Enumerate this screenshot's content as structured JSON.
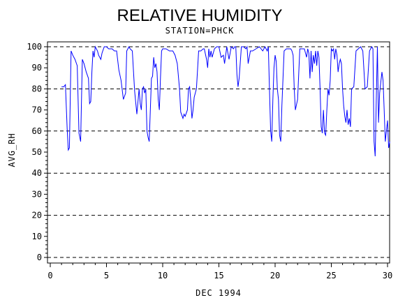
{
  "chart_data": {
    "type": "line",
    "title": "RELATIVE HUMIDITY",
    "subtitle": "STATION=PHCK",
    "xlabel": "DEC 1994",
    "ylabel": "AVG_RH",
    "xlim": [
      0,
      30
    ],
    "ylim": [
      0,
      100
    ],
    "x_ticks": [
      "0",
      "5",
      "10",
      "15",
      "20",
      "25",
      "30"
    ],
    "y_ticks": [
      "0",
      "10",
      "20",
      "30",
      "40",
      "50",
      "60",
      "70",
      "80",
      "90",
      "100"
    ],
    "gridlines_y": [
      0,
      20,
      40,
      60,
      80,
      100
    ],
    "grid": "dashed horizontal",
    "line_color": "#0000ff",
    "series": [
      {
        "x": [
          1.0,
          1.2,
          1.35,
          1.5,
          1.6,
          1.7,
          1.85,
          2.0,
          2.2,
          2.4,
          2.55,
          2.7,
          2.85,
          3.0,
          3.2,
          3.4,
          3.5,
          3.6,
          3.7,
          3.8,
          3.9,
          4.0,
          4.1,
          4.2,
          4.3,
          4.5,
          4.6,
          4.8,
          5.0,
          5.2,
          5.5,
          5.7,
          5.9,
          6.1,
          6.3,
          6.5,
          6.7,
          6.8,
          6.9,
          7.0,
          7.1,
          7.3,
          7.5,
          7.7,
          7.9,
          8.0,
          8.1,
          8.2,
          8.3,
          8.4,
          8.5,
          8.6,
          8.7,
          8.8,
          8.9,
          9.0,
          9.1,
          9.2,
          9.3,
          9.4,
          9.5,
          9.6,
          9.7,
          9.8,
          9.9,
          10.0,
          10.3,
          10.6,
          10.9,
          11.1,
          11.3,
          11.5,
          11.6,
          11.8,
          11.9,
          12.0,
          12.2,
          12.3,
          12.4,
          12.5,
          12.6,
          12.7,
          12.8,
          12.9,
          13.0,
          13.2,
          13.4,
          13.6,
          13.7,
          13.9,
          14.0,
          14.1,
          14.2,
          14.3,
          14.4,
          14.6,
          14.8,
          15.0,
          15.2,
          15.4,
          15.5,
          15.7,
          15.9,
          16.1,
          16.3,
          16.4,
          16.5,
          16.6,
          16.7,
          16.8,
          17.0,
          17.2,
          17.4,
          17.5,
          17.6,
          17.8,
          18.0,
          18.3,
          18.6,
          18.9,
          19.1,
          19.2,
          19.3,
          19.4,
          19.5,
          19.6,
          19.7,
          19.8,
          19.9,
          20.0,
          20.1,
          20.2,
          20.3,
          20.4,
          20.5,
          20.6,
          20.8,
          21.0,
          21.2,
          21.4,
          21.5,
          21.6,
          21.7,
          21.8,
          22.0,
          22.2,
          22.4,
          22.6,
          22.8,
          22.9,
          23.0,
          23.1,
          23.2,
          23.3,
          23.4,
          23.5,
          23.6,
          23.7,
          23.8,
          23.9,
          24.0,
          24.1,
          24.2,
          24.3,
          24.4,
          24.5,
          24.6,
          24.7,
          24.8,
          24.9,
          25.0,
          25.1,
          25.2,
          25.3,
          25.4,
          25.5,
          25.6,
          25.7,
          25.8,
          25.9,
          26.0,
          26.1,
          26.2,
          26.3,
          26.4,
          26.5,
          26.6,
          26.7,
          26.8,
          27.0,
          27.2,
          27.4,
          27.6,
          27.8,
          28.0,
          28.2,
          28.4,
          28.5,
          28.6,
          28.7,
          28.8,
          28.9,
          29.0,
          29.1,
          29.2,
          29.3,
          29.4,
          29.5,
          29.6,
          29.7,
          29.8,
          29.9,
          30.0,
          30.1,
          30.2
        ],
        "values": [
          81,
          81,
          82,
          61,
          51,
          52,
          98,
          96,
          94,
          91,
          59,
          55,
          94,
          92,
          88,
          85,
          73,
          74,
          88,
          98,
          95,
          100,
          99,
          98,
          96,
          94,
          97,
          100,
          100,
          99,
          99,
          98,
          98,
          89,
          84,
          75,
          78,
          98,
          99,
          100,
          99,
          98,
          79,
          68,
          80,
          73,
          70,
          80,
          81,
          78,
          80,
          60,
          57,
          55,
          70,
          85,
          86,
          95,
          90,
          92,
          88,
          75,
          70,
          85,
          98,
          99,
          99,
          98,
          98,
          96,
          92,
          80,
          69,
          66,
          68,
          67,
          70,
          80,
          81,
          74,
          66,
          70,
          76,
          78,
          80,
          98,
          98,
          99,
          99,
          94,
          90,
          99,
          95,
          98,
          95,
          99,
          100,
          100,
          95,
          96,
          92,
          100,
          94,
          100,
          99,
          100,
          100,
          87,
          81,
          85,
          100,
          100,
          99,
          100,
          92,
          98,
          98,
          99,
          100,
          98,
          100,
          99,
          98,
          100,
          80,
          60,
          55,
          75,
          90,
          96,
          93,
          80,
          75,
          58,
          55,
          72,
          98,
          99,
          99,
          99,
          98,
          96,
          80,
          70,
          75,
          99,
          99,
          99,
          95,
          99,
          97,
          85,
          98,
          88,
          96,
          92,
          98,
          91,
          98,
          95,
          80,
          62,
          59,
          70,
          59,
          58,
          70,
          80,
          77,
          84,
          99,
          98,
          99,
          94,
          99,
          96,
          88,
          92,
          94,
          92,
          80,
          72,
          67,
          64,
          70,
          63,
          66,
          62,
          80,
          81,
          98,
          99,
          100,
          98,
          80,
          81,
          98,
          99,
          100,
          99,
          55,
          48,
          75,
          100,
          64,
          78,
          83,
          88,
          84,
          70,
          55,
          60,
          65,
          52,
          55
        ]
      }
    ]
  }
}
